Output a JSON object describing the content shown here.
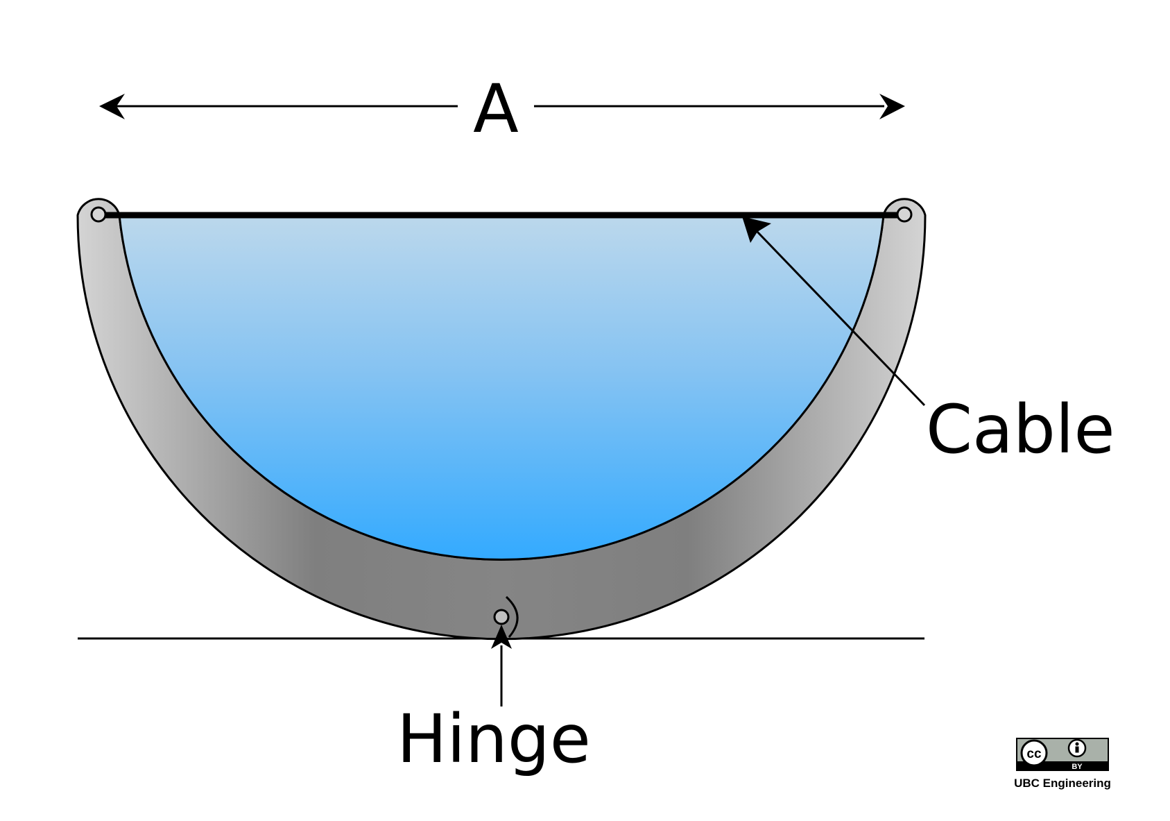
{
  "labels": {
    "dimension": "A",
    "cable": "Cable",
    "hinge": "Hinge"
  },
  "license": {
    "cc_mark": "cc",
    "by_mark": "BY",
    "attribution": "UBC Engineering"
  },
  "colors": {
    "water_top": "#bcd8ec",
    "water_bottom": "#33aaff",
    "shell_light": "#d2d2d2",
    "shell_dark": "#7a7a7a",
    "line": "#000000",
    "badge_bg": "#a9b1a9"
  }
}
